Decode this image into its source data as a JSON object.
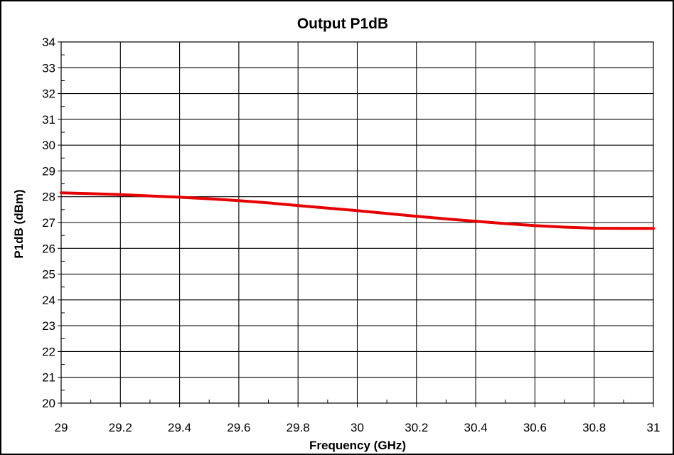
{
  "chart_data": {
    "type": "line",
    "title": "Output P1dB",
    "xlabel": "Frequency (GHz)",
    "ylabel": "P1dB (dBm)",
    "xlim": [
      29,
      31
    ],
    "ylim": [
      20,
      34
    ],
    "x_ticks": [
      "29",
      "29.2",
      "29.4",
      "29.6",
      "29.8",
      "30",
      "30.2",
      "30.4",
      "30.6",
      "30.8",
      "31"
    ],
    "y_ticks": [
      "20",
      "21",
      "22",
      "23",
      "24",
      "25",
      "26",
      "27",
      "28",
      "29",
      "30",
      "31",
      "32",
      "33",
      "34"
    ],
    "grid": true,
    "legend": "none",
    "series": [
      {
        "color": "#e60000",
        "x": [
          29.0,
          29.1,
          29.2,
          29.3,
          29.4,
          29.5,
          29.6,
          29.7,
          29.8,
          29.9,
          30.0,
          30.1,
          30.2,
          30.3,
          30.4,
          30.5,
          30.6,
          30.7,
          30.8,
          30.9,
          31.0
        ],
        "y": [
          28.15,
          28.12,
          28.08,
          28.03,
          27.98,
          27.92,
          27.85,
          27.76,
          27.66,
          27.56,
          27.46,
          27.35,
          27.24,
          27.14,
          27.05,
          26.96,
          26.88,
          26.82,
          26.78,
          26.77,
          26.77
        ]
      }
    ]
  }
}
